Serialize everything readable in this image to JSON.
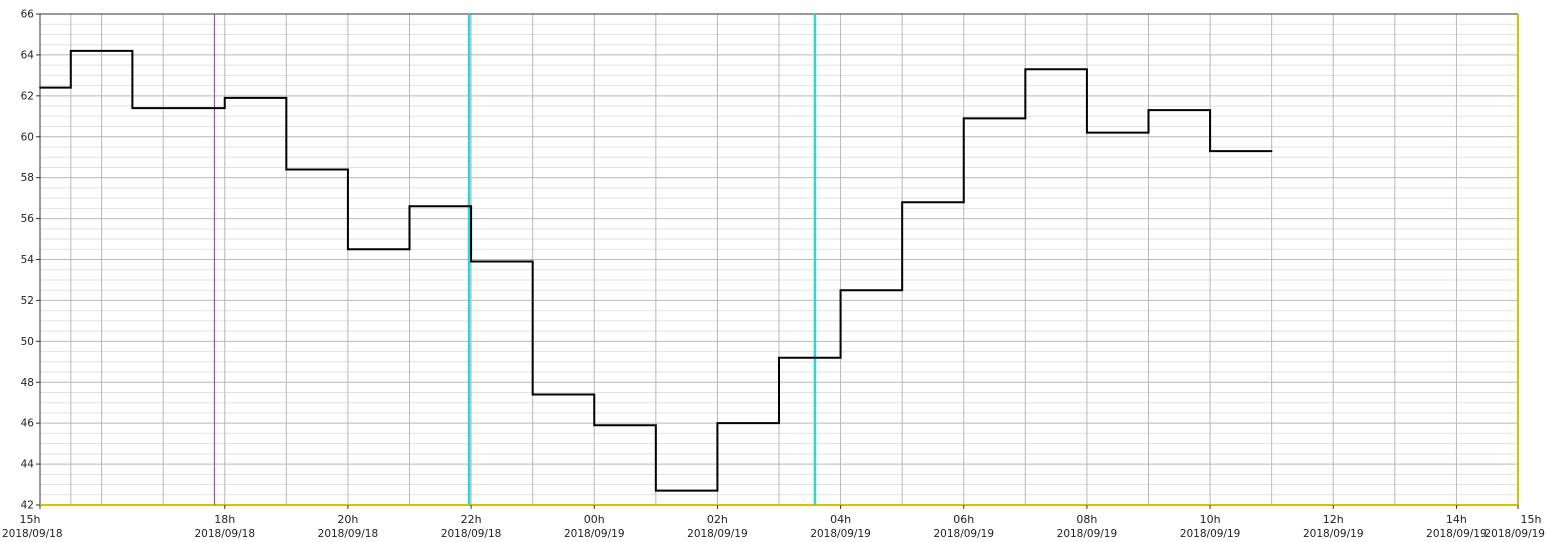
{
  "chart_data": {
    "type": "line",
    "step": true,
    "title": "",
    "xlabel": "",
    "ylabel": "",
    "ylim": [
      42,
      66
    ],
    "y_ticks": [
      42,
      44,
      46,
      48,
      50,
      52,
      54,
      56,
      58,
      60,
      62,
      64,
      66
    ],
    "xlim": [
      "2018-09-18 15:00",
      "2018-09-19 15:00"
    ],
    "grid": {
      "x": true,
      "y": true,
      "y_minor": true
    },
    "x_tick_labels": [
      {
        "time": "15h",
        "date": "2018/09/18",
        "at": "2018-09-18 15:00"
      },
      {
        "time": "18h",
        "date": "2018/09/18",
        "at": "2018-09-18 18:00"
      },
      {
        "time": "20h",
        "date": "2018/09/18",
        "at": "2018-09-18 20:00"
      },
      {
        "time": "22h",
        "date": "2018/09/18",
        "at": "2018-09-18 22:00"
      },
      {
        "time": "00h",
        "date": "2018/09/19",
        "at": "2018-09-19 00:00"
      },
      {
        "time": "02h",
        "date": "2018/09/19",
        "at": "2018-09-19 02:00"
      },
      {
        "time": "04h",
        "date": "2018/09/19",
        "at": "2018-09-19 04:00"
      },
      {
        "time": "06h",
        "date": "2018/09/19",
        "at": "2018-09-19 06:00"
      },
      {
        "time": "08h",
        "date": "2018/09/19",
        "at": "2018-09-19 08:00"
      },
      {
        "time": "10h",
        "date": "2018/09/19",
        "at": "2018-09-19 10:00"
      },
      {
        "time": "12h",
        "date": "2018/09/19",
        "at": "2018-09-19 12:00"
      },
      {
        "time": "14h",
        "date": "2018/09/19",
        "at": "2018-09-19 14:00"
      },
      {
        "time": "15h",
        "date": "2018/09/19",
        "at": "2018-09-19 15:00"
      }
    ],
    "series": [
      {
        "color": "#000000",
        "points": [
          {
            "x": "2018-09-18 15:00",
            "y": 62.4
          },
          {
            "x": "2018-09-18 15:30",
            "y": 64.2
          },
          {
            "x": "2018-09-18 16:30",
            "y": 61.4
          },
          {
            "x": "2018-09-18 18:00",
            "y": 61.9
          },
          {
            "x": "2018-09-18 19:00",
            "y": 58.4
          },
          {
            "x": "2018-09-18 20:00",
            "y": 54.5
          },
          {
            "x": "2018-09-18 21:00",
            "y": 56.6
          },
          {
            "x": "2018-09-18 22:00",
            "y": 53.9
          },
          {
            "x": "2018-09-18 23:00",
            "y": 47.4
          },
          {
            "x": "2018-09-19 00:00",
            "y": 45.9
          },
          {
            "x": "2018-09-19 01:00",
            "y": 42.7
          },
          {
            "x": "2018-09-19 02:00",
            "y": 46.0
          },
          {
            "x": "2018-09-19 03:00",
            "y": 49.2
          },
          {
            "x": "2018-09-19 04:00",
            "y": 52.5
          },
          {
            "x": "2018-09-19 05:00",
            "y": 56.8
          },
          {
            "x": "2018-09-19 06:00",
            "y": 60.9
          },
          {
            "x": "2018-09-19 07:00",
            "y": 63.3
          },
          {
            "x": "2018-09-19 08:00",
            "y": 60.2
          },
          {
            "x": "2018-09-19 09:00",
            "y": 61.3
          },
          {
            "x": "2018-09-19 10:00",
            "y": 59.3
          },
          {
            "x": "2018-09-19 11:00",
            "y": 59.3
          }
        ]
      }
    ],
    "markers": [
      {
        "x": "2018-09-18 17:50",
        "color": "#9b4fa8",
        "kind": "thin-vertical"
      },
      {
        "x": "2018-09-18 21:58",
        "color": "#2fd6d6",
        "kind": "thick-vertical"
      },
      {
        "x": "2018-09-19 03:35",
        "color": "#2fd6d6",
        "kind": "thick-vertical"
      }
    ],
    "axis_accent_color": "#d4c400",
    "grid_color": "#b9b9b9",
    "minor_grid_color": "#e2e2e2"
  }
}
